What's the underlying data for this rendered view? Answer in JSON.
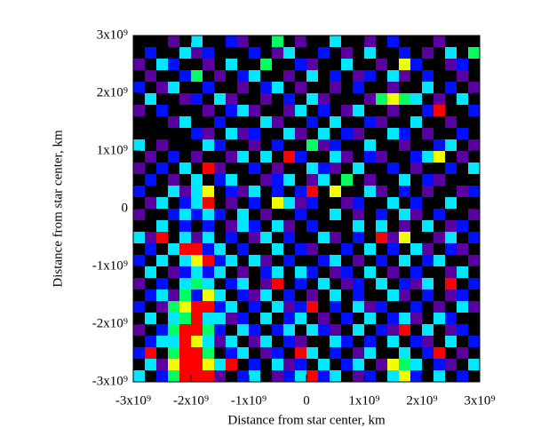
{
  "chart_data": {
    "type": "heatmap",
    "xlabel": "Distance from star center, km",
    "ylabel": "Distance from star center, km",
    "xlim": [
      -3000000000,
      3000000000
    ],
    "ylim": [
      -3000000000,
      3000000000
    ],
    "xticks": [
      {
        "value": -3000000000,
        "label": "-3x10⁹"
      },
      {
        "value": -2000000000,
        "label": "-2x10⁹"
      },
      {
        "value": -1000000000,
        "label": "-1x10⁹"
      },
      0,
      {
        "value": 1000000000,
        "label": "1x10⁹"
      },
      {
        "value": 2000000000,
        "label": "2x10⁹"
      },
      {
        "value": 3000000000,
        "label": "3x10⁹"
      }
    ],
    "yticks": [
      {
        "value": -3000000000,
        "label": "-3x10⁹"
      },
      {
        "value": -2000000000,
        "label": "-2x10⁹"
      },
      {
        "value": -1000000000,
        "label": "-1x10⁹"
      },
      0,
      {
        "value": 1000000000,
        "label": "1x10⁹"
      },
      {
        "value": 2000000000,
        "label": "2x10⁹"
      },
      {
        "value": 3000000000,
        "label": "3x10⁹"
      }
    ],
    "colors": [
      "#000000",
      "#5a00a0",
      "#0010ff",
      "#00e8ff",
      "#00ff60",
      "#f0ff00",
      "#ff0000"
    ],
    "values": [
      [
        0,
        0,
        0,
        1,
        0,
        3,
        0,
        0,
        2,
        1,
        0,
        0,
        4,
        0,
        1,
        0,
        0,
        3,
        0,
        0,
        1,
        0,
        2,
        0,
        0,
        0,
        1,
        0,
        0,
        0
      ],
      [
        0,
        2,
        0,
        0,
        3,
        1,
        2,
        0,
        0,
        0,
        2,
        0,
        1,
        3,
        0,
        0,
        2,
        0,
        1,
        0,
        3,
        0,
        0,
        2,
        0,
        1,
        0,
        3,
        0,
        4
      ],
      [
        1,
        0,
        3,
        2,
        0,
        0,
        1,
        0,
        3,
        0,
        0,
        4,
        0,
        0,
        2,
        1,
        0,
        0,
        3,
        0,
        0,
        1,
        0,
        5,
        2,
        0,
        0,
        1,
        2,
        0
      ],
      [
        0,
        1,
        0,
        0,
        2,
        4,
        0,
        1,
        0,
        2,
        3,
        0,
        0,
        1,
        0,
        3,
        0,
        2,
        0,
        1,
        2,
        0,
        3,
        1,
        0,
        2,
        0,
        0,
        1,
        0
      ],
      [
        2,
        0,
        1,
        3,
        0,
        0,
        2,
        0,
        0,
        1,
        0,
        2,
        3,
        0,
        1,
        0,
        0,
        1,
        0,
        2,
        0,
        0,
        1,
        0,
        0,
        3,
        0,
        2,
        0,
        1
      ],
      [
        0,
        3,
        0,
        0,
        1,
        2,
        0,
        3,
        1,
        0,
        0,
        1,
        0,
        2,
        0,
        3,
        1,
        0,
        0,
        0,
        1,
        4,
        5,
        4,
        3,
        0,
        1,
        0,
        3,
        0
      ],
      [
        1,
        0,
        2,
        0,
        0,
        0,
        1,
        0,
        2,
        3,
        1,
        0,
        0,
        1,
        3,
        0,
        2,
        0,
        1,
        3,
        0,
        0,
        1,
        0,
        0,
        2,
        6,
        0,
        0,
        2
      ],
      [
        0,
        0,
        0,
        1,
        3,
        0,
        0,
        2,
        0,
        0,
        0,
        3,
        1,
        0,
        0,
        2,
        0,
        3,
        0,
        0,
        2,
        1,
        0,
        0,
        3,
        0,
        0,
        1,
        0,
        0
      ],
      [
        0,
        0,
        0,
        0,
        0,
        2,
        1,
        0,
        3,
        1,
        2,
        0,
        0,
        3,
        1,
        0,
        3,
        0,
        2,
        1,
        0,
        0,
        3,
        2,
        0,
        1,
        0,
        0,
        2,
        0
      ],
      [
        3,
        0,
        1,
        0,
        0,
        0,
        3,
        2,
        0,
        0,
        1,
        0,
        2,
        0,
        0,
        4,
        1,
        2,
        0,
        0,
        3,
        0,
        0,
        1,
        0,
        0,
        2,
        3,
        0,
        1
      ],
      [
        0,
        1,
        0,
        2,
        0,
        1,
        0,
        0,
        1,
        3,
        0,
        3,
        0,
        6,
        2,
        0,
        0,
        3,
        1,
        0,
        2,
        1,
        0,
        0,
        2,
        3,
        5,
        0,
        1,
        0
      ],
      [
        1,
        0,
        2,
        0,
        3,
        0,
        6,
        1,
        0,
        0,
        2,
        0,
        1,
        0,
        0,
        3,
        2,
        1,
        0,
        3,
        0,
        0,
        2,
        0,
        1,
        0,
        0,
        2,
        0,
        3
      ],
      [
        0,
        2,
        0,
        1,
        0,
        3,
        0,
        2,
        3,
        0,
        0,
        1,
        2,
        3,
        0,
        1,
        3,
        0,
        4,
        0,
        1,
        0,
        0,
        3,
        0,
        2,
        1,
        0,
        0,
        0
      ],
      [
        2,
        0,
        0,
        3,
        1,
        3,
        5,
        0,
        2,
        1,
        3,
        0,
        2,
        0,
        2,
        6,
        0,
        5,
        0,
        0,
        3,
        1,
        0,
        2,
        0,
        1,
        0,
        0,
        1,
        2
      ],
      [
        0,
        1,
        3,
        0,
        2,
        3,
        6,
        0,
        1,
        0,
        2,
        0,
        5,
        3,
        1,
        2,
        0,
        0,
        1,
        2,
        0,
        0,
        3,
        0,
        2,
        0,
        0,
        3,
        0,
        0
      ],
      [
        1,
        0,
        0,
        2,
        3,
        2,
        3,
        2,
        0,
        3,
        0,
        1,
        0,
        0,
        2,
        0,
        0,
        3,
        0,
        1,
        0,
        2,
        0,
        3,
        1,
        0,
        2,
        0,
        0,
        1
      ],
      [
        0,
        0,
        3,
        0,
        2,
        0,
        2,
        0,
        1,
        3,
        2,
        0,
        3,
        1,
        0,
        2,
        0,
        0,
        0,
        3,
        0,
        3,
        0,
        1,
        0,
        3,
        0,
        1,
        2,
        0
      ],
      [
        3,
        1,
        6,
        0,
        3,
        1,
        3,
        0,
        2,
        0,
        1,
        3,
        0,
        2,
        0,
        0,
        3,
        1,
        0,
        2,
        0,
        6,
        1,
        5,
        0,
        0,
        1,
        3,
        0,
        2
      ],
      [
        0,
        2,
        0,
        3,
        6,
        6,
        2,
        3,
        0,
        2,
        0,
        0,
        3,
        0,
        2,
        1,
        0,
        0,
        2,
        0,
        3,
        0,
        2,
        0,
        3,
        1,
        0,
        2,
        1,
        0
      ],
      [
        2,
        0,
        3,
        0,
        3,
        5,
        6,
        2,
        3,
        0,
        3,
        1,
        0,
        2,
        0,
        0,
        2,
        3,
        0,
        1,
        0,
        2,
        0,
        3,
        0,
        2,
        3,
        0,
        0,
        1
      ],
      [
        0,
        3,
        0,
        1,
        2,
        3,
        2,
        3,
        0,
        1,
        0,
        2,
        3,
        0,
        3,
        2,
        0,
        1,
        2,
        0,
        3,
        0,
        1,
        0,
        2,
        0,
        0,
        1,
        3,
        0
      ],
      [
        1,
        0,
        2,
        0,
        3,
        4,
        3,
        0,
        2,
        3,
        0,
        1,
        6,
        0,
        2,
        0,
        3,
        0,
        1,
        2,
        0,
        3,
        0,
        2,
        1,
        3,
        0,
        6,
        0,
        2
      ],
      [
        0,
        2,
        3,
        1,
        4,
        2,
        5,
        3,
        0,
        2,
        1,
        3,
        0,
        2,
        0,
        1,
        0,
        3,
        0,
        2,
        0,
        0,
        3,
        1,
        0,
        2,
        0,
        1,
        2,
        0
      ],
      [
        2,
        0,
        1,
        4,
        5,
        6,
        6,
        2,
        3,
        0,
        2,
        0,
        3,
        1,
        2,
        6,
        0,
        2,
        0,
        3,
        1,
        2,
        0,
        0,
        2,
        0,
        1,
        0,
        3,
        1
      ],
      [
        0,
        3,
        0,
        3,
        4,
        6,
        3,
        3,
        1,
        2,
        0,
        3,
        0,
        2,
        3,
        0,
        1,
        0,
        2,
        0,
        3,
        0,
        2,
        3,
        1,
        0,
        3,
        2,
        0,
        0
      ],
      [
        1,
        0,
        2,
        4,
        6,
        6,
        4,
        2,
        0,
        3,
        2,
        0,
        2,
        3,
        0,
        3,
        2,
        1,
        0,
        3,
        0,
        2,
        1,
        6,
        0,
        3,
        0,
        1,
        2,
        0
      ],
      [
        0,
        2,
        3,
        3,
        6,
        5,
        3,
        1,
        3,
        0,
        1,
        3,
        0,
        2,
        1,
        0,
        0,
        3,
        2,
        0,
        2,
        0,
        3,
        0,
        2,
        1,
        0,
        3,
        0,
        2
      ],
      [
        2,
        6,
        0,
        4,
        6,
        6,
        4,
        0,
        2,
        3,
        0,
        1,
        2,
        0,
        6,
        3,
        0,
        2,
        0,
        1,
        3,
        0,
        0,
        3,
        0,
        2,
        6,
        0,
        1,
        0
      ],
      [
        0,
        3,
        1,
        5,
        6,
        6,
        5,
        3,
        6,
        0,
        2,
        0,
        3,
        1,
        2,
        0,
        3,
        0,
        2,
        3,
        0,
        1,
        5,
        4,
        3,
        0,
        2,
        1,
        0,
        3
      ],
      [
        3,
        0,
        2,
        4,
        6,
        6,
        6,
        1,
        0,
        2,
        3,
        0,
        1,
        2,
        3,
        6,
        2,
        3,
        0,
        1,
        2,
        0,
        3,
        5,
        2,
        0,
        3,
        0,
        2,
        0
      ]
    ]
  }
}
